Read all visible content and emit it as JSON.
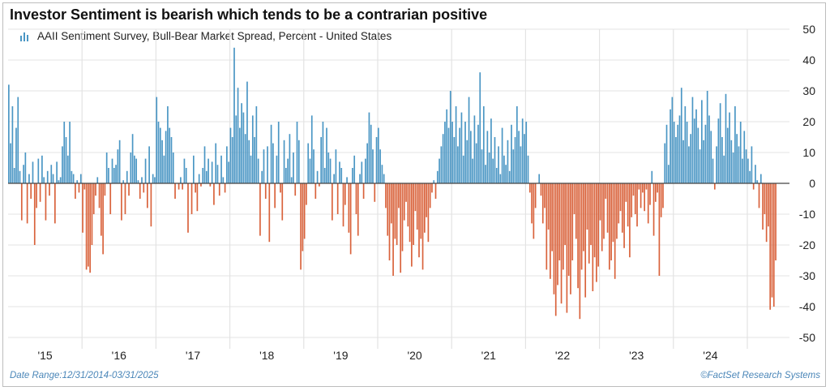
{
  "title": "Investor Sentiment is bearish which tends to be a contrarian positive",
  "footer": {
    "date_range": "Date Range:12/31/2014-03/31/2025",
    "source": "©FactSet Research Systems"
  },
  "colors": {
    "positive": "#4a96c4",
    "negative": "#d9623b",
    "grid": "#e3e3e3",
    "zero_line": "#444444"
  },
  "chart_data": {
    "type": "bar",
    "series": [
      {
        "name": "AAII Sentiment Survey, Bull-Bear Market Spread, Percent - United States",
        "note": "weekly values, first and last bar each year sketched from chart",
        "yearly_profile": [
          {
            "year": "2015",
            "values": [
              32,
              13,
              25,
              5,
              18,
              28,
              4,
              -12,
              6,
              10,
              -13,
              3,
              -5,
              7,
              -20,
              -8,
              8,
              -6,
              9,
              2,
              -12,
              4,
              -4,
              6,
              3,
              -13,
              7,
              1,
              2,
              12,
              20,
              15,
              9,
              20,
              4,
              3,
              -5,
              1,
              -3,
              3
            ]
          },
          {
            "year": "2016",
            "values": [
              -16,
              -2,
              -28,
              -27,
              -29,
              -20,
              -10,
              -4,
              2,
              -8,
              -17,
              -23,
              -4,
              10,
              5,
              -10,
              8,
              5,
              6,
              11,
              14,
              -12,
              1,
              -10,
              4,
              -4,
              10,
              16,
              9,
              8,
              1,
              -5,
              2,
              -3,
              8,
              -8,
              12,
              -14,
              3,
              2
            ]
          },
          {
            "year": "2017",
            "values": [
              28,
              20,
              18,
              14,
              9,
              17,
              25,
              18,
              15,
              10,
              -5,
              0,
              -2,
              2,
              -2,
              8,
              5,
              -16,
              0,
              -10,
              9,
              -3,
              -9,
              3,
              -1,
              5,
              12,
              4,
              8,
              -1,
              7,
              -7,
              13,
              6,
              -4,
              9,
              2,
              -3,
              12,
              7
            ]
          },
          {
            "year": "2018",
            "values": [
              18,
              15,
              44,
              22,
              31,
              18,
              26,
              23,
              16,
              33,
              14,
              9,
              22,
              15,
              25,
              8,
              -17,
              4,
              11,
              -5,
              12,
              -19,
              19,
              13,
              -8,
              9,
              20,
              -3,
              -12,
              14,
              5,
              8,
              16,
              2,
              10,
              -4,
              20,
              14,
              -28,
              -22
            ]
          },
          {
            "year": "2019",
            "values": [
              -18,
              -7,
              13,
              8,
              22,
              11,
              -5,
              4,
              -1,
              15,
              20,
              5,
              18,
              10,
              8,
              -12,
              3,
              11,
              -10,
              7,
              5,
              -14,
              -7,
              2,
              -16,
              -23,
              5,
              9,
              -10,
              -17,
              3,
              7,
              -5,
              8,
              13,
              23,
              19,
              11,
              -6,
              15
            ]
          },
          {
            "year": "2020",
            "values": [
              18,
              11,
              6,
              3,
              -8,
              -17,
              -25,
              -13,
              -30,
              -18,
              -20,
              -8,
              -29,
              -22,
              -12,
              -6,
              -14,
              -19,
              -27,
              -20,
              -9,
              -15,
              -24,
              -18,
              -28,
              -16,
              -11,
              -19,
              -8,
              -3,
              1,
              -5,
              4,
              8,
              12,
              16,
              20,
              24,
              18,
              30
            ]
          },
          {
            "year": "2021",
            "values": [
              20,
              15,
              25,
              12,
              18,
              23,
              9,
              20,
              14,
              28,
              17,
              8,
              22,
              13,
              19,
              36,
              11,
              25,
              6,
              17,
              10,
              21,
              8,
              15,
              5,
              12,
              3,
              18,
              9,
              6,
              14,
              4,
              19,
              11,
              15,
              25,
              17,
              12,
              21,
              16
            ]
          },
          {
            "year": "2022",
            "values": [
              20,
              9,
              -3,
              -13,
              -18,
              -8,
              0,
              3,
              -4,
              -13,
              -8,
              -28,
              -15,
              -31,
              -22,
              -36,
              -43,
              -33,
              -25,
              -39,
              -28,
              -20,
              -42,
              -30,
              -36,
              -25,
              -10,
              -18,
              -34,
              -44,
              -28,
              -22,
              -37,
              -15,
              -26,
              -20,
              -35,
              -24,
              -32,
              -27
            ]
          },
          {
            "year": "2023",
            "values": [
              -12,
              -22,
              -18,
              -5,
              -16,
              -28,
              -25,
              -19,
              -31,
              -18,
              -13,
              -9,
              -16,
              -21,
              -6,
              -14,
              -24,
              -11,
              -4,
              -10,
              -14,
              -2,
              -8,
              -3,
              -9,
              -2,
              -13,
              -7,
              4,
              -17,
              -6,
              -3,
              -30,
              -11,
              -8,
              13,
              19,
              6,
              24,
              28
            ]
          },
          {
            "year": "2024",
            "values": [
              20,
              15,
              19,
              22,
              31,
              14,
              25,
              20,
              12,
              16,
              28,
              21,
              24,
              18,
              11,
              27,
              14,
              19,
              30,
              22,
              17,
              8,
              -2,
              12,
              21,
              26,
              15,
              9,
              29,
              18,
              23,
              14,
              10,
              25,
              16,
              12,
              20,
              8,
              17,
              11
            ]
          },
          {
            "year": "2025",
            "values": [
              8,
              4,
              12,
              -2,
              6,
              1,
              -8,
              3,
              -15,
              -10,
              -19,
              -14,
              -41,
              -37,
              -40,
              -25
            ]
          }
        ]
      }
    ],
    "x_tick_labels": [
      "'15",
      "'16",
      "'17",
      "'18",
      "'19",
      "'20",
      "'21",
      "'22",
      "'23",
      "'24"
    ],
    "ylim": [
      -50,
      50
    ],
    "yticks": [
      -50,
      -40,
      -30,
      -20,
      -10,
      0,
      10,
      20,
      30,
      40,
      50
    ],
    "y_tick_labels": [
      "-50",
      "-40",
      "-30",
      "-20",
      "-10",
      "0",
      "10",
      "20",
      "30",
      "40",
      "50"
    ],
    "y_axis_side": "right",
    "grid": true,
    "legend_position": "top-left"
  }
}
